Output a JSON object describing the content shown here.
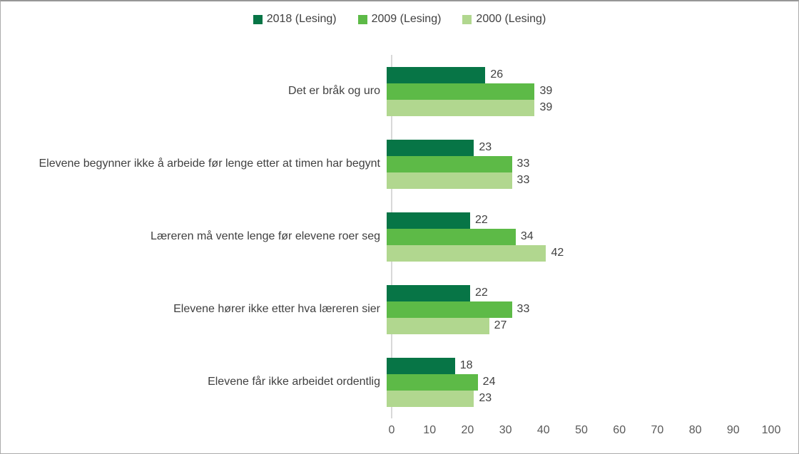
{
  "chart_data": {
    "type": "bar",
    "orientation": "horizontal",
    "title": "",
    "xlabel": "",
    "ylabel": "",
    "xlim": [
      0,
      100
    ],
    "x_ticks": [
      0,
      10,
      20,
      30,
      40,
      50,
      60,
      70,
      80,
      90,
      100
    ],
    "grid": false,
    "legend_position": "top",
    "categories": [
      "Det er bråk og uro",
      "Elevene begynner ikke å arbeide før lenge etter at timen har begynt",
      "Læreren må vente lenge før elevene roer seg",
      "Elevene hører ikke etter hva læreren sier",
      "Elevene får ikke arbeidet ordentlig"
    ],
    "series": [
      {
        "name": "2018 (Lesing)",
        "color": "#077546",
        "values": [
          26,
          23,
          22,
          22,
          18
        ]
      },
      {
        "name": "2009 (Lesing)",
        "color": "#5dba47",
        "values": [
          39,
          33,
          34,
          33,
          24
        ]
      },
      {
        "name": "2000 (Lesing)",
        "color": "#b1d78f",
        "values": [
          39,
          33,
          42,
          27,
          23
        ]
      }
    ]
  },
  "colors": {
    "axis_line": "#d9d9d9",
    "category_label_text": "#404040",
    "value_label_text": "#404040",
    "tick_label_text": "#595959",
    "frame_border": "#ababab"
  }
}
